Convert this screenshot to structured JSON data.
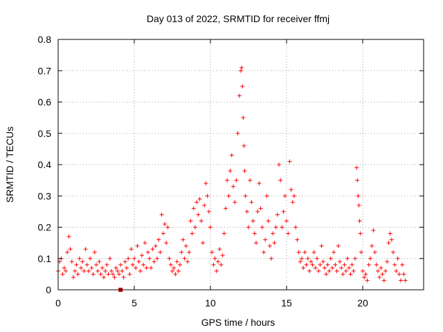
{
  "chart_data": {
    "type": "scatter",
    "title": "Day 013 of 2022, SRMTID for receiver ffmj",
    "xlabel": "GPS time / hours",
    "ylabel": "SRMTID / TECUs",
    "xlim": [
      0,
      24
    ],
    "ylim": [
      0,
      0.8
    ],
    "xticks": [
      0,
      5,
      10,
      15,
      20
    ],
    "yticks": [
      0,
      0.1,
      0.2,
      0.3,
      0.4,
      0.5,
      0.6,
      0.7,
      0.8
    ],
    "ytick_labels": [
      "0",
      "0.1",
      "0.2",
      "0.3",
      "0.4",
      "0.5",
      "0.6",
      "0.7",
      "0.8"
    ],
    "grid": true,
    "marker": "plus",
    "colors": {
      "series": "#ff0000",
      "marker_square": "#cc0000"
    },
    "special_marker": {
      "shape": "square",
      "x": 4.1,
      "y": 0.0
    },
    "series": [
      {
        "name": "SRMTID",
        "points": [
          [
            0.0,
            0.06
          ],
          [
            0.1,
            0.09
          ],
          [
            0.2,
            0.1
          ],
          [
            0.3,
            0.05
          ],
          [
            0.4,
            0.07
          ],
          [
            0.5,
            0.06
          ],
          [
            0.6,
            0.12
          ],
          [
            0.7,
            0.17
          ],
          [
            0.8,
            0.13
          ],
          [
            0.9,
            0.09
          ],
          [
            1.0,
            0.04
          ],
          [
            1.1,
            0.06
          ],
          [
            1.2,
            0.08
          ],
          [
            1.3,
            0.05
          ],
          [
            1.4,
            0.1
          ],
          [
            1.5,
            0.07
          ],
          [
            1.6,
            0.09
          ],
          [
            1.7,
            0.06
          ],
          [
            1.8,
            0.13
          ],
          [
            1.9,
            0.08
          ],
          [
            2.0,
            0.06
          ],
          [
            2.1,
            0.1
          ],
          [
            2.2,
            0.07
          ],
          [
            2.3,
            0.05
          ],
          [
            2.4,
            0.12
          ],
          [
            2.5,
            0.08
          ],
          [
            2.6,
            0.06
          ],
          [
            2.7,
            0.09
          ],
          [
            2.8,
            0.05
          ],
          [
            2.9,
            0.07
          ],
          [
            3.0,
            0.04
          ],
          [
            3.1,
            0.06
          ],
          [
            3.2,
            0.08
          ],
          [
            3.3,
            0.05
          ],
          [
            3.4,
            0.1
          ],
          [
            3.5,
            0.06
          ],
          [
            3.6,
            0.05
          ],
          [
            3.7,
            0.04
          ],
          [
            3.8,
            0.07
          ],
          [
            3.9,
            0.06
          ],
          [
            4.0,
            0.05
          ],
          [
            4.1,
            0.08
          ],
          [
            4.2,
            0.06
          ],
          [
            4.3,
            0.04
          ],
          [
            4.4,
            0.09
          ],
          [
            4.5,
            0.07
          ],
          [
            4.6,
            0.1
          ],
          [
            4.7,
            0.05
          ],
          [
            4.8,
            0.13
          ],
          [
            4.9,
            0.08
          ],
          [
            5.0,
            0.1
          ],
          [
            5.1,
            0.07
          ],
          [
            5.2,
            0.14
          ],
          [
            5.3,
            0.09
          ],
          [
            5.4,
            0.06
          ],
          [
            5.5,
            0.11
          ],
          [
            5.6,
            0.08
          ],
          [
            5.7,
            0.15
          ],
          [
            5.8,
            0.07
          ],
          [
            5.9,
            0.12
          ],
          [
            6.0,
            0.1
          ],
          [
            6.1,
            0.07
          ],
          [
            6.2,
            0.13
          ],
          [
            6.3,
            0.09
          ],
          [
            6.4,
            0.14
          ],
          [
            6.5,
            0.1
          ],
          [
            6.6,
            0.16
          ],
          [
            6.7,
            0.12
          ],
          [
            6.8,
            0.24
          ],
          [
            6.9,
            0.18
          ],
          [
            7.0,
            0.21
          ],
          [
            7.1,
            0.15
          ],
          [
            7.2,
            0.2
          ],
          [
            7.3,
            0.1
          ],
          [
            7.4,
            0.08
          ],
          [
            7.5,
            0.06
          ],
          [
            7.6,
            0.07
          ],
          [
            7.7,
            0.05
          ],
          [
            7.8,
            0.09
          ],
          [
            7.9,
            0.06
          ],
          [
            8.0,
            0.08
          ],
          [
            8.1,
            0.12
          ],
          [
            8.2,
            0.16
          ],
          [
            8.3,
            0.1
          ],
          [
            8.4,
            0.14
          ],
          [
            8.5,
            0.09
          ],
          [
            8.6,
            0.12
          ],
          [
            8.7,
            0.22
          ],
          [
            8.8,
            0.18
          ],
          [
            8.9,
            0.26
          ],
          [
            9.0,
            0.2
          ],
          [
            9.1,
            0.28
          ],
          [
            9.2,
            0.24
          ],
          [
            9.3,
            0.29
          ],
          [
            9.4,
            0.22
          ],
          [
            9.5,
            0.15
          ],
          [
            9.6,
            0.27
          ],
          [
            9.7,
            0.34
          ],
          [
            9.8,
            0.3
          ],
          [
            9.9,
            0.25
          ],
          [
            10.0,
            0.2
          ],
          [
            10.1,
            0.12
          ],
          [
            10.2,
            0.08
          ],
          [
            10.3,
            0.1
          ],
          [
            10.4,
            0.06
          ],
          [
            10.5,
            0.09
          ],
          [
            10.6,
            0.13
          ],
          [
            10.7,
            0.08
          ],
          [
            10.8,
            0.11
          ],
          [
            10.9,
            0.18
          ],
          [
            11.0,
            0.26
          ],
          [
            11.1,
            0.35
          ],
          [
            11.2,
            0.3
          ],
          [
            11.3,
            0.38
          ],
          [
            11.4,
            0.43
          ],
          [
            11.5,
            0.33
          ],
          [
            11.6,
            0.28
          ],
          [
            11.7,
            0.35
          ],
          [
            11.8,
            0.5
          ],
          [
            11.9,
            0.62
          ],
          [
            12.0,
            0.7
          ],
          [
            12.05,
            0.71
          ],
          [
            12.1,
            0.65
          ],
          [
            12.15,
            0.55
          ],
          [
            12.2,
            0.46
          ],
          [
            12.25,
            0.38
          ],
          [
            12.3,
            0.3
          ],
          [
            12.4,
            0.25
          ],
          [
            12.5,
            0.2
          ],
          [
            12.6,
            0.35
          ],
          [
            12.7,
            0.28
          ],
          [
            12.8,
            0.22
          ],
          [
            12.9,
            0.18
          ],
          [
            13.0,
            0.15
          ],
          [
            13.1,
            0.25
          ],
          [
            13.2,
            0.34
          ],
          [
            13.3,
            0.26
          ],
          [
            13.4,
            0.2
          ],
          [
            13.5,
            0.12
          ],
          [
            13.6,
            0.16
          ],
          [
            13.7,
            0.3
          ],
          [
            13.8,
            0.22
          ],
          [
            13.9,
            0.14
          ],
          [
            14.0,
            0.1
          ],
          [
            14.1,
            0.18
          ],
          [
            14.2,
            0.15
          ],
          [
            14.3,
            0.2
          ],
          [
            14.4,
            0.24
          ],
          [
            14.5,
            0.4
          ],
          [
            14.6,
            0.35
          ],
          [
            14.7,
            0.2
          ],
          [
            14.8,
            0.25
          ],
          [
            14.9,
            0.3
          ],
          [
            15.0,
            0.22
          ],
          [
            15.1,
            0.18
          ],
          [
            15.2,
            0.41
          ],
          [
            15.3,
            0.32
          ],
          [
            15.4,
            0.28
          ],
          [
            15.5,
            0.3
          ],
          [
            15.6,
            0.2
          ],
          [
            15.7,
            0.16
          ],
          [
            15.8,
            0.12
          ],
          [
            15.9,
            0.09
          ],
          [
            16.0,
            0.1
          ],
          [
            16.1,
            0.07
          ],
          [
            16.2,
            0.12
          ],
          [
            16.3,
            0.08
          ],
          [
            16.4,
            0.1
          ],
          [
            16.5,
            0.06
          ],
          [
            16.6,
            0.09
          ],
          [
            16.7,
            0.08
          ],
          [
            16.8,
            0.12
          ],
          [
            16.9,
            0.07
          ],
          [
            17.0,
            0.1
          ],
          [
            17.1,
            0.06
          ],
          [
            17.2,
            0.08
          ],
          [
            17.3,
            0.14
          ],
          [
            17.4,
            0.09
          ],
          [
            17.5,
            0.07
          ],
          [
            17.6,
            0.05
          ],
          [
            17.7,
            0.08
          ],
          [
            17.8,
            0.06
          ],
          [
            17.9,
            0.1
          ],
          [
            18.0,
            0.07
          ],
          [
            18.1,
            0.12
          ],
          [
            18.2,
            0.08
          ],
          [
            18.3,
            0.06
          ],
          [
            18.4,
            0.14
          ],
          [
            18.5,
            0.09
          ],
          [
            18.6,
            0.07
          ],
          [
            18.7,
            0.05
          ],
          [
            18.8,
            0.08
          ],
          [
            18.9,
            0.06
          ],
          [
            19.0,
            0.1
          ],
          [
            19.1,
            0.07
          ],
          [
            19.2,
            0.05
          ],
          [
            19.3,
            0.08
          ],
          [
            19.4,
            0.06
          ],
          [
            19.5,
            0.1
          ],
          [
            19.6,
            0.39
          ],
          [
            19.65,
            0.35
          ],
          [
            19.7,
            0.3
          ],
          [
            19.75,
            0.27
          ],
          [
            19.8,
            0.22
          ],
          [
            19.85,
            0.18
          ],
          [
            19.9,
            0.12
          ],
          [
            20.0,
            0.06
          ],
          [
            20.1,
            0.04
          ],
          [
            20.2,
            0.05
          ],
          [
            20.3,
            0.03
          ],
          [
            20.4,
            0.08
          ],
          [
            20.5,
            0.1
          ],
          [
            20.6,
            0.14
          ],
          [
            20.7,
            0.19
          ],
          [
            20.8,
            0.12
          ],
          [
            20.9,
            0.08
          ],
          [
            21.0,
            0.06
          ],
          [
            21.1,
            0.04
          ],
          [
            21.2,
            0.07
          ],
          [
            21.3,
            0.05
          ],
          [
            21.4,
            0.03
          ],
          [
            21.5,
            0.06
          ],
          [
            21.6,
            0.09
          ],
          [
            21.7,
            0.15
          ],
          [
            21.8,
            0.18
          ],
          [
            21.9,
            0.16
          ],
          [
            22.0,
            0.12
          ],
          [
            22.1,
            0.08
          ],
          [
            22.2,
            0.06
          ],
          [
            22.3,
            0.1
          ],
          [
            22.4,
            0.05
          ],
          [
            22.5,
            0.03
          ],
          [
            22.6,
            0.08
          ],
          [
            22.7,
            0.05
          ],
          [
            22.8,
            0.03
          ]
        ]
      }
    ]
  }
}
